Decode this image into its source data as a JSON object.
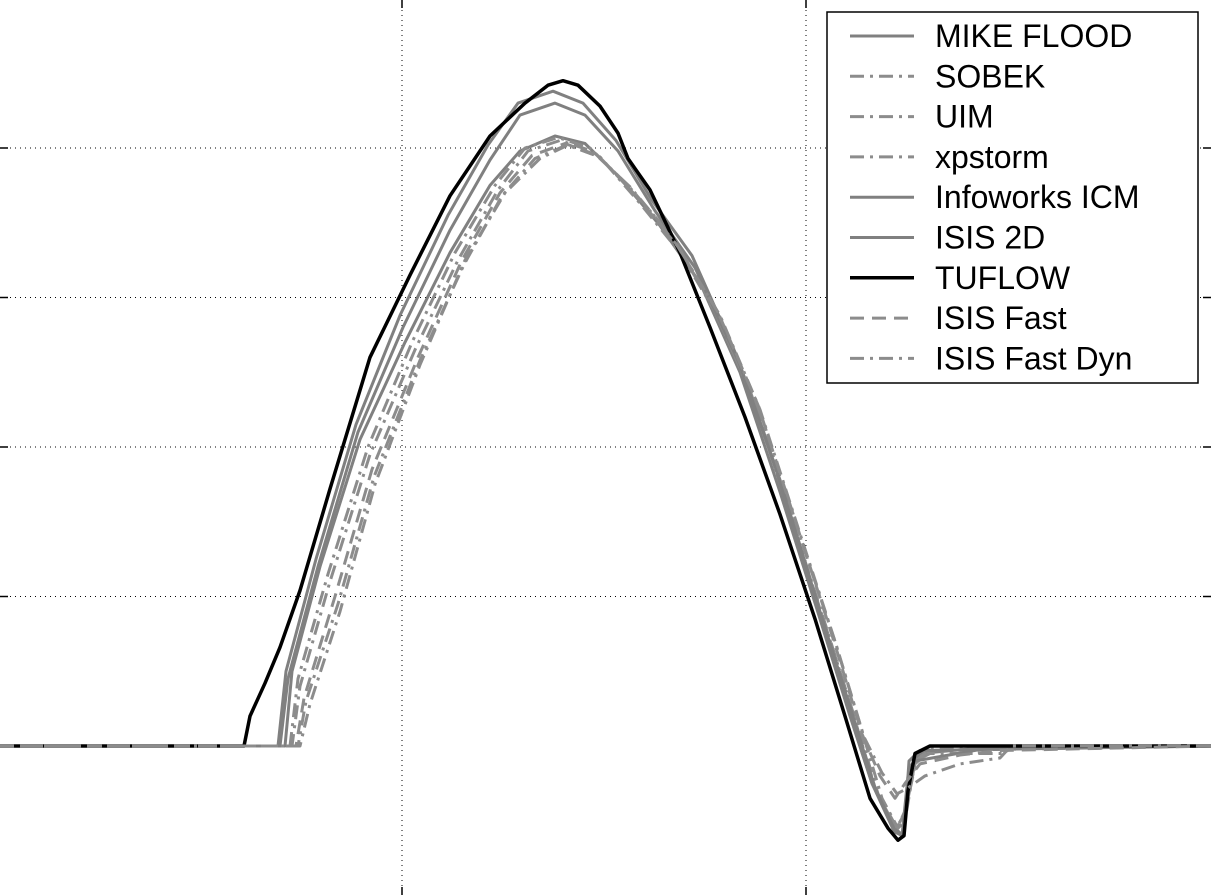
{
  "chart_data": {
    "type": "line",
    "title": "",
    "xlabel": "",
    "ylabel": "",
    "xlim": [
      0,
      1211
    ],
    "ylim": [
      -0.7,
      5.0
    ],
    "grid": true,
    "x_gridlines": [
      402,
      806
    ],
    "y_gridlines": [
      1,
      2,
      3,
      4
    ],
    "legend_position": "top-right",
    "series": [
      {
        "name": "MIKE FLOOD",
        "style": "solid",
        "color": "#808080",
        "width": 3,
        "points": [
          [
            0,
            0
          ],
          [
            285,
            0
          ],
          [
            292,
            0.5
          ],
          [
            320,
            1.2
          ],
          [
            360,
            2.05
          ],
          [
            405,
            2.7
          ],
          [
            450,
            3.3
          ],
          [
            490,
            3.75
          ],
          [
            520,
            3.98
          ],
          [
            555,
            4.08
          ],
          [
            585,
            4.03
          ],
          [
            620,
            3.8
          ],
          [
            660,
            3.48
          ],
          [
            700,
            3.1
          ],
          [
            740,
            2.5
          ],
          [
            780,
            1.7
          ],
          [
            820,
            0.85
          ],
          [
            850,
            0.2
          ],
          [
            872,
            -0.25
          ],
          [
            895,
            -0.55
          ],
          [
            903,
            -0.6
          ],
          [
            909,
            -0.15
          ],
          [
            920,
            -0.05
          ],
          [
            1000,
            0
          ],
          [
            1211,
            0
          ]
        ]
      },
      {
        "name": "SOBEK",
        "style": "dashdot",
        "color": "#8c8c8c",
        "width": 3,
        "points": [
          [
            0,
            0
          ],
          [
            300,
            0
          ],
          [
            310,
            0.28
          ],
          [
            340,
            0.9
          ],
          [
            375,
            1.75
          ],
          [
            420,
            2.55
          ],
          [
            465,
            3.25
          ],
          [
            505,
            3.7
          ],
          [
            540,
            3.93
          ],
          [
            568,
            4.02
          ],
          [
            600,
            3.94
          ],
          [
            640,
            3.63
          ],
          [
            680,
            3.3
          ],
          [
            720,
            2.85
          ],
          [
            760,
            2.2
          ],
          [
            800,
            1.4
          ],
          [
            835,
            0.7
          ],
          [
            862,
            0.1
          ],
          [
            882,
            -0.35
          ],
          [
            898,
            -0.55
          ],
          [
            905,
            -0.5
          ],
          [
            915,
            -0.1
          ],
          [
            930,
            -0.05
          ],
          [
            1005,
            -0.05
          ],
          [
            1011,
            0
          ],
          [
            1211,
            0
          ]
        ]
      },
      {
        "name": "UIM",
        "style": "dashdot",
        "color": "#8c8c8c",
        "width": 3,
        "points": [
          [
            0,
            0
          ],
          [
            292,
            0
          ],
          [
            300,
            0.4
          ],
          [
            330,
            1.1
          ],
          [
            370,
            1.95
          ],
          [
            415,
            2.65
          ],
          [
            458,
            3.25
          ],
          [
            498,
            3.72
          ],
          [
            528,
            3.98
          ],
          [
            560,
            4.05
          ],
          [
            592,
            3.98
          ],
          [
            630,
            3.74
          ],
          [
            670,
            3.42
          ],
          [
            712,
            2.95
          ],
          [
            752,
            2.35
          ],
          [
            792,
            1.5
          ],
          [
            828,
            0.75
          ],
          [
            858,
            0.12
          ],
          [
            878,
            -0.32
          ],
          [
            897,
            -0.55
          ],
          [
            906,
            -0.42
          ],
          [
            916,
            -0.1
          ],
          [
            930,
            -0.02
          ],
          [
            1211,
            0
          ]
        ]
      },
      {
        "name": "xpstorm",
        "style": "dashdot",
        "color": "#8c8c8c",
        "width": 3,
        "points": [
          [
            0,
            0
          ],
          [
            290,
            0
          ],
          [
            298,
            0.45
          ],
          [
            328,
            1.15
          ],
          [
            368,
            2.0
          ],
          [
            412,
            2.7
          ],
          [
            455,
            3.3
          ],
          [
            495,
            3.75
          ],
          [
            525,
            4.0
          ],
          [
            558,
            4.07
          ],
          [
            590,
            4.0
          ],
          [
            628,
            3.75
          ],
          [
            668,
            3.44
          ],
          [
            710,
            2.98
          ],
          [
            750,
            2.38
          ],
          [
            790,
            1.55
          ],
          [
            826,
            0.8
          ],
          [
            856,
            0.15
          ],
          [
            876,
            -0.3
          ],
          [
            896,
            -0.55
          ],
          [
            905,
            -0.45
          ],
          [
            915,
            -0.12
          ],
          [
            930,
            -0.03
          ],
          [
            1211,
            0
          ]
        ]
      },
      {
        "name": "Infoworks ICM",
        "style": "solid",
        "color": "#808080",
        "width": 3,
        "points": [
          [
            0,
            0
          ],
          [
            280,
            0
          ],
          [
            288,
            0.45
          ],
          [
            318,
            1.2
          ],
          [
            358,
            2.1
          ],
          [
            403,
            2.8
          ],
          [
            450,
            3.45
          ],
          [
            490,
            3.92
          ],
          [
            520,
            4.22
          ],
          [
            555,
            4.3
          ],
          [
            585,
            4.22
          ],
          [
            618,
            3.98
          ],
          [
            655,
            3.58
          ],
          [
            695,
            3.2
          ],
          [
            740,
            2.55
          ],
          [
            780,
            1.78
          ],
          [
            820,
            0.9
          ],
          [
            852,
            0.22
          ],
          [
            875,
            -0.28
          ],
          [
            896,
            -0.58
          ],
          [
            904,
            -0.6
          ],
          [
            909,
            -0.1
          ],
          [
            920,
            -0.03
          ],
          [
            1211,
            0
          ]
        ]
      },
      {
        "name": "ISIS 2D",
        "style": "solid",
        "color": "#808080",
        "width": 3,
        "points": [
          [
            0,
            0
          ],
          [
            278,
            0
          ],
          [
            286,
            0.5
          ],
          [
            316,
            1.25
          ],
          [
            356,
            2.15
          ],
          [
            400,
            2.88
          ],
          [
            448,
            3.55
          ],
          [
            488,
            4.02
          ],
          [
            518,
            4.3
          ],
          [
            553,
            4.38
          ],
          [
            583,
            4.3
          ],
          [
            616,
            4.05
          ],
          [
            652,
            3.65
          ],
          [
            692,
            3.28
          ],
          [
            736,
            2.62
          ],
          [
            776,
            1.85
          ],
          [
            816,
            0.95
          ],
          [
            848,
            0.25
          ],
          [
            872,
            -0.25
          ],
          [
            894,
            -0.57
          ],
          [
            902,
            -0.6
          ],
          [
            908,
            -0.2
          ],
          [
            915,
            -0.1
          ],
          [
            1000,
            0
          ],
          [
            1211,
            0
          ]
        ]
      },
      {
        "name": "TUFLOW",
        "style": "solid",
        "color": "#000000",
        "width": 3.5,
        "points": [
          [
            0,
            0
          ],
          [
            244,
            0
          ],
          [
            250,
            0.2
          ],
          [
            265,
            0.42
          ],
          [
            280,
            0.66
          ],
          [
            300,
            1.04
          ],
          [
            330,
            1.72
          ],
          [
            370,
            2.6
          ],
          [
            410,
            3.15
          ],
          [
            450,
            3.68
          ],
          [
            490,
            4.08
          ],
          [
            525,
            4.3
          ],
          [
            548,
            4.42
          ],
          [
            563,
            4.45
          ],
          [
            578,
            4.42
          ],
          [
            600,
            4.28
          ],
          [
            618,
            4.1
          ],
          [
            628,
            3.93
          ],
          [
            650,
            3.72
          ],
          [
            680,
            3.3
          ],
          [
            710,
            2.8
          ],
          [
            745,
            2.2
          ],
          [
            780,
            1.55
          ],
          [
            815,
            0.85
          ],
          [
            845,
            0.2
          ],
          [
            870,
            -0.35
          ],
          [
            888,
            -0.55
          ],
          [
            898,
            -0.63
          ],
          [
            904,
            -0.6
          ],
          [
            908,
            -0.3
          ],
          [
            915,
            -0.05
          ],
          [
            930,
            0
          ],
          [
            1211,
            0
          ]
        ]
      },
      {
        "name": "ISIS Fast",
        "style": "dashed",
        "color": "#8c8c8c",
        "width": 3,
        "points": [
          [
            0,
            0
          ],
          [
            296,
            0
          ],
          [
            304,
            0.32
          ],
          [
            335,
            1.0
          ],
          [
            372,
            1.85
          ],
          [
            418,
            2.6
          ],
          [
            462,
            3.25
          ],
          [
            500,
            3.7
          ],
          [
            532,
            3.95
          ],
          [
            565,
            4.03
          ],
          [
            598,
            3.95
          ],
          [
            636,
            3.68
          ],
          [
            676,
            3.36
          ],
          [
            718,
            2.9
          ],
          [
            758,
            2.28
          ],
          [
            798,
            1.45
          ],
          [
            834,
            0.7
          ],
          [
            862,
            0.08
          ],
          [
            880,
            -0.2
          ],
          [
            895,
            -0.35
          ],
          [
            905,
            -0.25
          ],
          [
            920,
            -0.12
          ],
          [
            960,
            -0.06
          ],
          [
            1000,
            -0.03
          ],
          [
            1211,
            0
          ]
        ]
      },
      {
        "name": "ISIS Fast Dyn",
        "style": "dashdot",
        "color": "#8c8c8c",
        "width": 3,
        "points": [
          [
            0,
            0
          ],
          [
            298,
            0
          ],
          [
            306,
            0.3
          ],
          [
            338,
            0.95
          ],
          [
            374,
            1.8
          ],
          [
            420,
            2.58
          ],
          [
            464,
            3.22
          ],
          [
            502,
            3.68
          ],
          [
            535,
            3.93
          ],
          [
            567,
            4.02
          ],
          [
            600,
            3.94
          ],
          [
            638,
            3.66
          ],
          [
            678,
            3.34
          ],
          [
            720,
            2.88
          ],
          [
            760,
            2.25
          ],
          [
            800,
            1.42
          ],
          [
            836,
            0.68
          ],
          [
            864,
            0.06
          ],
          [
            882,
            -0.18
          ],
          [
            897,
            -0.32
          ],
          [
            908,
            -0.28
          ],
          [
            925,
            -0.2
          ],
          [
            960,
            -0.12
          ],
          [
            1000,
            -0.08
          ],
          [
            1011,
            0
          ],
          [
            1211,
            0
          ]
        ]
      }
    ]
  }
}
